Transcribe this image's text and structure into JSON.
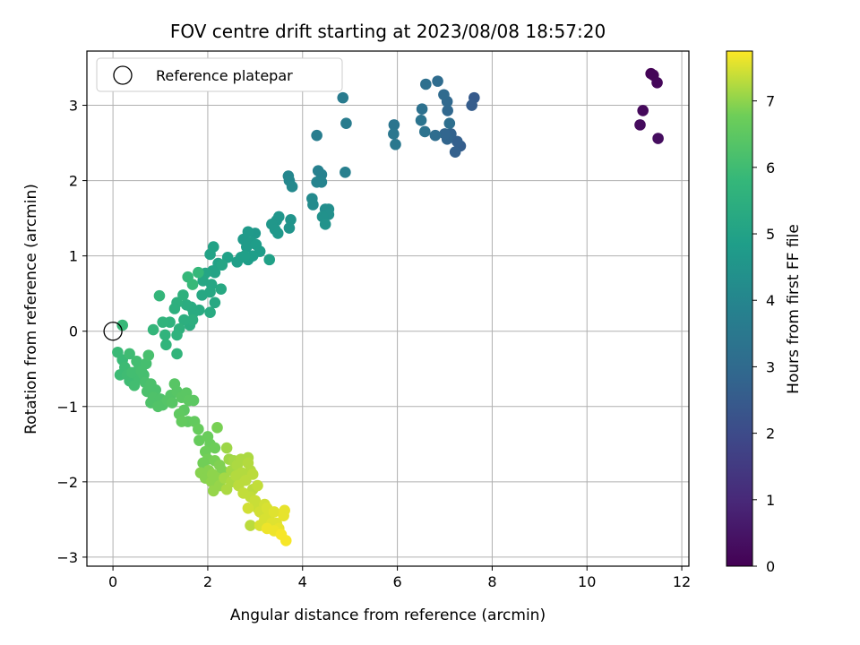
{
  "chart_data": {
    "type": "scatter",
    "title": "FOV centre drift starting at 2023/08/08 18:57:20",
    "xlabel": "Angular distance from reference (arcmin)",
    "ylabel": "Rotation from reference (arcmin)",
    "xlim": [
      -0.55,
      12.15
    ],
    "ylim": [
      -3.12,
      3.72
    ],
    "xticks": [
      0,
      2,
      4,
      6,
      8,
      10,
      12
    ],
    "yticks": [
      -3,
      -2,
      -1,
      0,
      1,
      2,
      3
    ],
    "grid": true,
    "legend": {
      "placement": "top-left",
      "entries": [
        "Reference platepar"
      ]
    },
    "reference_point": {
      "x": 0,
      "y": 0,
      "label": "Reference platepar"
    },
    "colorbar": {
      "label": "Hours from first FF file",
      "range": [
        0,
        7.75
      ],
      "ticks": [
        0,
        1,
        2,
        3,
        4,
        5,
        6,
        7
      ],
      "colormap": "viridis"
    },
    "columns": [
      "x",
      "y",
      "hours"
    ],
    "points": [
      [
        11.35,
        3.42,
        0.05
      ],
      [
        11.4,
        3.4,
        0.1
      ],
      [
        11.48,
        3.3,
        0.15
      ],
      [
        11.18,
        2.93,
        0.2
      ],
      [
        11.12,
        2.74,
        0.25
      ],
      [
        11.5,
        2.56,
        0.3
      ],
      [
        7.62,
        3.1,
        2.5
      ],
      [
        7.57,
        3.0,
        2.55
      ],
      [
        7.33,
        2.46,
        2.6
      ],
      [
        7.26,
        2.52,
        2.65
      ],
      [
        7.22,
        2.38,
        2.7
      ],
      [
        7.13,
        2.62,
        2.75
      ],
      [
        7.05,
        2.55,
        2.8
      ],
      [
        7.0,
        2.62,
        2.85
      ],
      [
        7.06,
        2.93,
        2.9
      ],
      [
        7.05,
        3.05,
        2.95
      ],
      [
        6.98,
        3.14,
        3.0
      ],
      [
        6.85,
        3.32,
        3.05
      ],
      [
        6.8,
        2.6,
        3.1
      ],
      [
        7.1,
        2.76,
        3.15
      ],
      [
        6.6,
        3.28,
        3.2
      ],
      [
        6.52,
        2.95,
        3.25
      ],
      [
        6.58,
        2.65,
        3.3
      ],
      [
        6.5,
        2.8,
        3.35
      ],
      [
        5.93,
        2.74,
        3.4
      ],
      [
        5.92,
        2.62,
        3.45
      ],
      [
        5.96,
        2.48,
        3.5
      ],
      [
        4.85,
        3.1,
        3.6
      ],
      [
        4.92,
        2.76,
        3.65
      ],
      [
        4.3,
        2.6,
        3.7
      ],
      [
        4.9,
        2.11,
        3.75
      ],
      [
        4.33,
        2.13,
        3.8
      ],
      [
        4.4,
        2.08,
        3.85
      ],
      [
        4.4,
        1.98,
        3.9
      ],
      [
        4.3,
        1.98,
        3.95
      ],
      [
        3.7,
        2.06,
        4.0
      ],
      [
        3.72,
        2.0,
        4.05
      ],
      [
        3.78,
        1.92,
        4.1
      ],
      [
        4.2,
        1.76,
        4.15
      ],
      [
        4.22,
        1.68,
        4.2
      ],
      [
        4.48,
        1.62,
        4.25
      ],
      [
        4.55,
        1.62,
        4.3
      ],
      [
        4.55,
        1.55,
        4.35
      ],
      [
        4.42,
        1.52,
        4.4
      ],
      [
        4.48,
        1.42,
        4.45
      ],
      [
        3.75,
        1.48,
        4.5
      ],
      [
        3.72,
        1.37,
        4.5
      ],
      [
        3.5,
        1.52,
        4.55
      ],
      [
        3.45,
        1.47,
        4.55
      ],
      [
        3.35,
        1.42,
        4.6
      ],
      [
        3.42,
        1.35,
        4.6
      ],
      [
        3.48,
        1.3,
        4.65
      ],
      [
        3.0,
        1.3,
        4.65
      ],
      [
        2.85,
        1.32,
        4.7
      ],
      [
        2.75,
        1.22,
        4.7
      ],
      [
        2.92,
        1.18,
        4.75
      ],
      [
        2.82,
        1.12,
        4.75
      ],
      [
        3.02,
        1.15,
        4.8
      ],
      [
        3.1,
        1.06,
        4.8
      ],
      [
        2.95,
        1.0,
        4.85
      ],
      [
        2.85,
        0.95,
        4.85
      ],
      [
        2.78,
        1.0,
        4.9
      ],
      [
        2.62,
        0.92,
        4.9
      ],
      [
        2.7,
        0.98,
        4.9
      ],
      [
        3.3,
        0.95,
        4.95
      ],
      [
        2.42,
        0.98,
        4.95
      ],
      [
        2.12,
        1.12,
        5.0
      ],
      [
        2.05,
        1.02,
        5.0
      ],
      [
        2.22,
        0.9,
        5.0
      ],
      [
        2.1,
        0.8,
        5.05
      ],
      [
        2.15,
        0.78,
        5.05
      ],
      [
        2.3,
        0.88,
        5.1
      ],
      [
        1.95,
        0.77,
        5.1
      ],
      [
        1.9,
        0.67,
        5.15
      ],
      [
        2.08,
        0.62,
        5.15
      ],
      [
        2.05,
        0.52,
        5.2
      ],
      [
        1.88,
        0.48,
        5.2
      ],
      [
        2.28,
        0.56,
        5.25
      ],
      [
        2.15,
        0.38,
        5.25
      ],
      [
        2.05,
        0.25,
        5.3
      ],
      [
        1.82,
        0.28,
        5.3
      ],
      [
        1.7,
        0.25,
        5.35
      ],
      [
        1.65,
        0.32,
        5.35
      ],
      [
        1.55,
        0.35,
        5.4
      ],
      [
        1.62,
        0.08,
        5.4
      ],
      [
        1.68,
        0.15,
        5.45
      ],
      [
        1.5,
        0.15,
        5.45
      ],
      [
        1.35,
        0.38,
        5.5
      ],
      [
        1.3,
        0.3,
        5.5
      ],
      [
        1.48,
        0.48,
        5.55
      ],
      [
        1.4,
        0.03,
        5.55
      ],
      [
        1.2,
        0.12,
        5.6
      ],
      [
        1.35,
        -0.05,
        5.6
      ],
      [
        1.1,
        -0.05,
        5.65
      ],
      [
        1.05,
        0.12,
        5.65
      ],
      [
        1.12,
        -0.18,
        5.7
      ],
      [
        1.35,
        -0.3,
        5.7
      ],
      [
        0.98,
        0.47,
        5.75
      ],
      [
        0.85,
        0.02,
        5.75
      ],
      [
        1.58,
        0.72,
        5.8
      ],
      [
        1.8,
        0.78,
        5.8
      ],
      [
        1.68,
        0.62,
        5.85
      ],
      [
        0.2,
        0.08,
        5.85
      ],
      [
        0.1,
        -0.28,
        5.9
      ],
      [
        0.2,
        -0.38,
        5.9
      ],
      [
        0.25,
        -0.48,
        5.95
      ],
      [
        0.3,
        -0.58,
        6.0
      ],
      [
        0.35,
        -0.66,
        6.0
      ],
      [
        0.45,
        -0.72,
        6.05
      ],
      [
        0.55,
        -0.62,
        6.05
      ],
      [
        0.6,
        -0.53,
        6.1
      ],
      [
        0.7,
        -0.43,
        6.1
      ],
      [
        0.75,
        -0.32,
        6.15
      ],
      [
        0.68,
        -0.68,
        6.15
      ],
      [
        0.8,
        -0.7,
        6.2
      ],
      [
        0.72,
        -0.8,
        6.2
      ],
      [
        0.85,
        -0.88,
        6.25
      ],
      [
        1.0,
        -0.9,
        6.25
      ],
      [
        1.05,
        -0.98,
        6.3
      ],
      [
        0.95,
        -1.0,
        6.3
      ],
      [
        1.15,
        -0.92,
        6.35
      ],
      [
        1.22,
        -0.85,
        6.35
      ],
      [
        1.3,
        -0.7,
        6.4
      ],
      [
        1.35,
        -0.8,
        6.4
      ],
      [
        1.45,
        -0.88,
        6.45
      ],
      [
        1.55,
        -0.82,
        6.45
      ],
      [
        1.7,
        -0.92,
        6.5
      ],
      [
        1.5,
        -1.05,
        6.5
      ],
      [
        1.4,
        -1.1,
        6.55
      ],
      [
        1.58,
        -1.2,
        6.55
      ],
      [
        1.45,
        -1.2,
        6.6
      ],
      [
        1.72,
        -1.2,
        6.6
      ],
      [
        1.8,
        -1.3,
        6.65
      ],
      [
        1.82,
        -1.45,
        6.65
      ],
      [
        2.0,
        -1.4,
        6.7
      ],
      [
        2.05,
        -1.5,
        6.7
      ],
      [
        2.15,
        -1.55,
        6.75
      ],
      [
        1.95,
        -1.6,
        6.75
      ],
      [
        2.0,
        -1.7,
        6.8
      ],
      [
        1.9,
        -1.75,
        6.8
      ],
      [
        2.2,
        -1.28,
        6.85
      ],
      [
        2.15,
        -1.72,
        6.85
      ],
      [
        2.25,
        -1.78,
        6.9
      ],
      [
        2.3,
        -1.85,
        6.9
      ],
      [
        1.85,
        -1.88,
        6.95
      ],
      [
        1.95,
        -1.95,
        6.95
      ],
      [
        2.08,
        -2.0,
        7.0
      ],
      [
        2.2,
        -1.95,
        7.0
      ],
      [
        2.25,
        -2.05,
        7.05
      ],
      [
        2.12,
        -2.12,
        7.05
      ],
      [
        2.4,
        -1.55,
        7.1
      ],
      [
        2.45,
        -1.7,
        7.1
      ],
      [
        2.55,
        -1.72,
        7.15
      ],
      [
        2.5,
        -1.85,
        7.15
      ],
      [
        2.62,
        -1.78,
        7.2
      ],
      [
        2.7,
        -1.7,
        7.2
      ],
      [
        2.85,
        -1.75,
        7.25
      ],
      [
        2.9,
        -1.85,
        7.25
      ],
      [
        2.8,
        -1.98,
        7.3
      ],
      [
        2.65,
        -2.05,
        7.3
      ],
      [
        2.75,
        -2.15,
        7.35
      ],
      [
        2.9,
        -2.2,
        7.35
      ],
      [
        3.0,
        -2.25,
        7.4
      ],
      [
        3.05,
        -2.35,
        7.4
      ],
      [
        2.85,
        -2.35,
        7.45
      ],
      [
        3.1,
        -2.4,
        7.45
      ],
      [
        3.2,
        -2.5,
        7.5
      ],
      [
        3.3,
        -2.45,
        7.5
      ],
      [
        3.4,
        -2.4,
        7.55
      ],
      [
        3.45,
        -2.55,
        7.55
      ],
      [
        3.6,
        -2.45,
        7.6
      ],
      [
        3.62,
        -2.38,
        7.6
      ],
      [
        3.25,
        -2.62,
        7.65
      ],
      [
        3.4,
        -2.65,
        7.65
      ],
      [
        3.55,
        -2.7,
        7.7
      ],
      [
        3.65,
        -2.78,
        7.7
      ],
      [
        2.9,
        -2.58,
        7.3
      ],
      [
        3.1,
        -2.58,
        7.5
      ],
      [
        3.2,
        -2.3,
        7.45
      ],
      [
        2.95,
        -2.1,
        7.3
      ],
      [
        3.05,
        -2.05,
        7.35
      ],
      [
        2.5,
        -2.0,
        7.2
      ],
      [
        2.6,
        -1.92,
        7.25
      ],
      [
        2.35,
        -1.95,
        7.15
      ],
      [
        2.4,
        -2.1,
        7.2
      ],
      [
        2.1,
        -1.9,
        7.0
      ],
      [
        2.02,
        -1.85,
        6.95
      ],
      [
        1.6,
        -0.92,
        6.5
      ],
      [
        1.25,
        -0.95,
        6.4
      ],
      [
        0.4,
        -0.55,
        6.05
      ],
      [
        0.55,
        -0.45,
        6.05
      ],
      [
        0.65,
        -0.58,
        6.1
      ],
      [
        0.5,
        -0.4,
        6.05
      ],
      [
        0.35,
        -0.3,
        6.0
      ],
      [
        0.25,
        -0.55,
        5.95
      ],
      [
        0.15,
        -0.58,
        5.95
      ],
      [
        0.45,
        -0.62,
        6.0
      ],
      [
        0.9,
        -0.78,
        6.2
      ],
      [
        0.8,
        -0.95,
        6.25
      ],
      [
        2.85,
        -1.68,
        7.2
      ],
      [
        2.72,
        -1.88,
        7.25
      ],
      [
        2.95,
        -1.9,
        7.3
      ],
      [
        3.25,
        -2.35,
        7.5
      ],
      [
        3.35,
        -2.55,
        7.55
      ],
      [
        3.5,
        -2.62,
        7.6
      ]
    ]
  }
}
